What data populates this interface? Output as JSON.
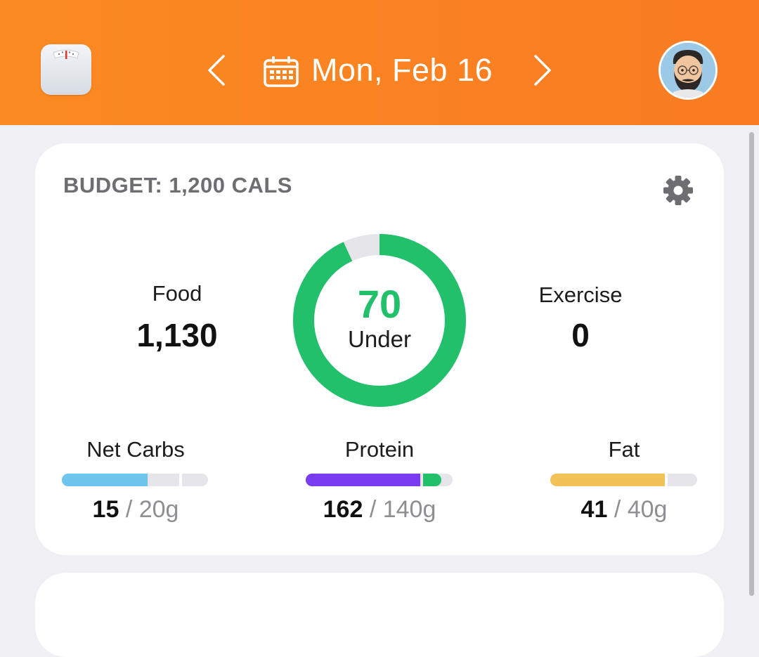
{
  "header": {
    "date": "Mon, Feb 16",
    "icons": {
      "scale": "scale-icon",
      "prev": "chevron-left-icon",
      "next": "chevron-right-icon",
      "calendar": "calendar-icon",
      "avatar": "avatar"
    }
  },
  "budget": {
    "title": "BUDGET: 1,200 CALS",
    "settings_icon": "gear-icon"
  },
  "summary": {
    "food_label": "Food",
    "food_value": "1,130",
    "exercise_label": "Exercise",
    "exercise_value": "0",
    "remaining_value": "70",
    "remaining_label": "Under",
    "ring_fraction_consumed": 0.94
  },
  "macros": [
    {
      "label": "Net Carbs",
      "current": "15",
      "target": "/ 20g",
      "fraction": 0.75,
      "color": "#6ec4ec"
    },
    {
      "label": "Protein",
      "current": "162",
      "target": "/ 140g",
      "fraction": 1.157,
      "color": "#7a3cf0",
      "over_color": "#23c06c"
    },
    {
      "label": "Fat",
      "current": "41",
      "target": "/ 40g",
      "fraction": 1.025,
      "color": "#f2c158"
    }
  ],
  "colors": {
    "header": "#fb8a22",
    "accent_green": "#23c06c",
    "ring_track": "#e6e6ea"
  }
}
